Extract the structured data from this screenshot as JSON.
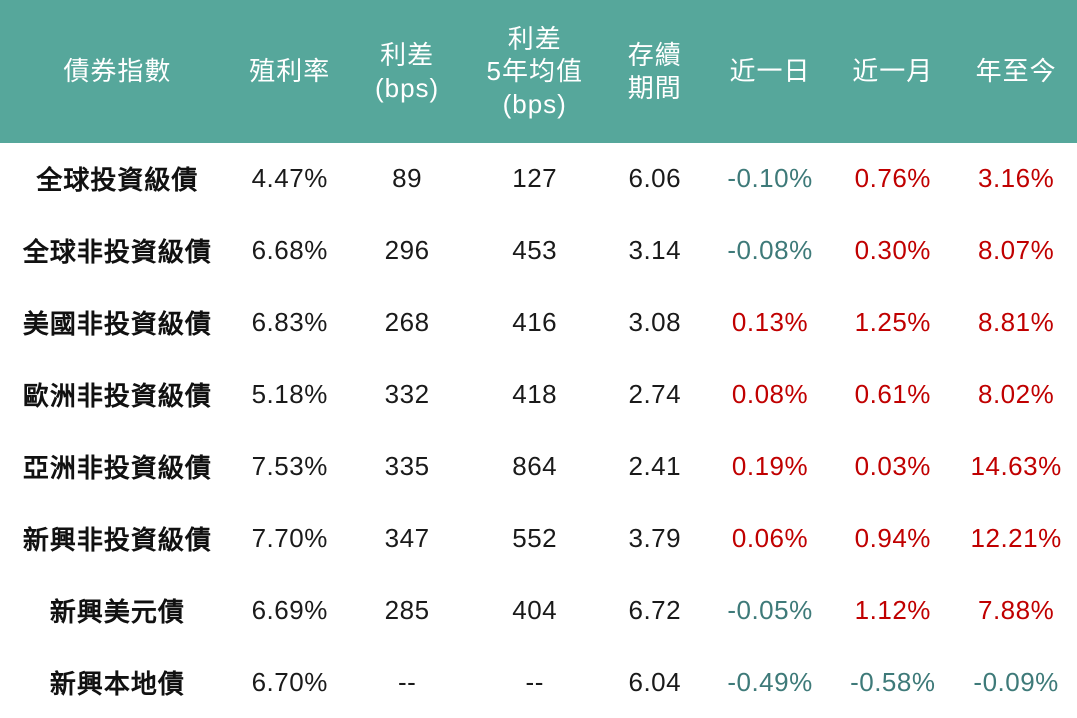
{
  "colors": {
    "header_bg": "#56A79B",
    "header_text": "#FFFFFF",
    "positive_change": "#C00000",
    "negative_change": "#3E7A79",
    "body_text": "#1A1A1A"
  },
  "chart_data": {
    "type": "table",
    "change_columns": [
      "past_day",
      "past_month",
      "ytd"
    ],
    "columns": [
      {
        "key": "name",
        "label": "債券指數"
      },
      {
        "key": "yield",
        "label": "殖利率"
      },
      {
        "key": "spread",
        "label": "利差\n(bps)"
      },
      {
        "key": "spread_5y_avg",
        "label": "利差\n5年均值\n(bps)"
      },
      {
        "key": "duration",
        "label": "存續\n期間"
      },
      {
        "key": "past_day",
        "label": "近一日"
      },
      {
        "key": "past_month",
        "label": "近一月"
      },
      {
        "key": "ytd",
        "label": "年至今"
      }
    ],
    "rows": [
      {
        "name": "全球投資級債",
        "yield": "4.47%",
        "spread": "89",
        "spread_5y_avg": "127",
        "duration": "6.06",
        "past_day": "-0.10%",
        "past_month": "0.76%",
        "ytd": "3.16%"
      },
      {
        "name": "全球非投資級債",
        "yield": "6.68%",
        "spread": "296",
        "spread_5y_avg": "453",
        "duration": "3.14",
        "past_day": "-0.08%",
        "past_month": "0.30%",
        "ytd": "8.07%"
      },
      {
        "name": "美國非投資級債",
        "yield": "6.83%",
        "spread": "268",
        "spread_5y_avg": "416",
        "duration": "3.08",
        "past_day": "0.13%",
        "past_month": "1.25%",
        "ytd": "8.81%"
      },
      {
        "name": "歐洲非投資級債",
        "yield": "5.18%",
        "spread": "332",
        "spread_5y_avg": "418",
        "duration": "2.74",
        "past_day": "0.08%",
        "past_month": "0.61%",
        "ytd": "8.02%"
      },
      {
        "name": "亞洲非投資級債",
        "yield": "7.53%",
        "spread": "335",
        "spread_5y_avg": "864",
        "duration": "2.41",
        "past_day": "0.19%",
        "past_month": "0.03%",
        "ytd": "14.63%"
      },
      {
        "name": "新興非投資級債",
        "yield": "7.70%",
        "spread": "347",
        "spread_5y_avg": "552",
        "duration": "3.79",
        "past_day": "0.06%",
        "past_month": "0.94%",
        "ytd": "12.21%"
      },
      {
        "name": "新興美元債",
        "yield": "6.69%",
        "spread": "285",
        "spread_5y_avg": "404",
        "duration": "6.72",
        "past_day": "-0.05%",
        "past_month": "1.12%",
        "ytd": "7.88%"
      },
      {
        "name": "新興本地債",
        "yield": "6.70%",
        "spread": "--",
        "spread_5y_avg": "--",
        "duration": "6.04",
        "past_day": "-0.49%",
        "past_month": "-0.58%",
        "ytd": "-0.09%"
      }
    ]
  }
}
